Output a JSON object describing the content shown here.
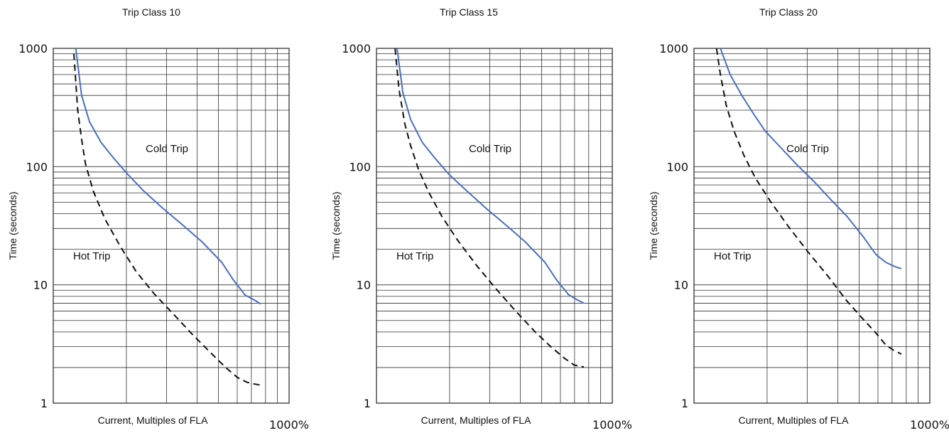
{
  "chart_data": [
    {
      "type": "line",
      "title": "Trip Class 10",
      "xlabel": "Current, Multiples of FLA",
      "ylabel": "Time (seconds)",
      "x_end_label": "1000%",
      "yscale": "log",
      "ylim": [
        1,
        1000
      ],
      "y_ticks": [
        "1",
        "10",
        "100",
        "1000"
      ],
      "grid": true,
      "annotations": [
        "Cold Trip",
        "Hot Trip"
      ],
      "colors": {
        "cold": "#4a6fbf",
        "hot": "#111111"
      },
      "series": [
        {
          "key": "cold",
          "style": "solid",
          "points": [
            [
              0.05,
              1000
            ],
            [
              0.08,
              400
            ],
            [
              0.12,
              240
            ],
            [
              0.18,
              160
            ],
            [
              0.25,
              115
            ],
            [
              0.32,
              85
            ],
            [
              0.4,
              62
            ],
            [
              0.5,
              44
            ],
            [
              0.6,
              32
            ],
            [
              0.7,
              23
            ],
            [
              0.8,
              15.5
            ],
            [
              0.86,
              11
            ],
            [
              0.92,
              8.2
            ],
            [
              0.97,
              7.4
            ],
            [
              1.0,
              6.9
            ]
          ]
        },
        {
          "key": "hot",
          "style": "dashed",
          "points": [
            [
              0.04,
              900
            ],
            [
              0.06,
              300
            ],
            [
              0.08,
              170
            ],
            [
              0.1,
              105
            ],
            [
              0.14,
              62
            ],
            [
              0.2,
              36
            ],
            [
              0.28,
              21
            ],
            [
              0.36,
              13
            ],
            [
              0.45,
              8.5
            ],
            [
              0.55,
              5.7
            ],
            [
              0.65,
              3.8
            ],
            [
              0.75,
              2.6
            ],
            [
              0.82,
              2.0
            ],
            [
              0.88,
              1.65
            ],
            [
              0.93,
              1.5
            ],
            [
              0.97,
              1.45
            ],
            [
              1.0,
              1.42
            ]
          ]
        }
      ]
    },
    {
      "type": "line",
      "title": "Trip Class 15",
      "xlabel": "Current, Multiples of FLA",
      "ylabel": "Time (seconds)",
      "x_end_label": "1000%",
      "yscale": "log",
      "ylim": [
        1,
        1000
      ],
      "y_ticks": [
        "1",
        "10",
        "100",
        "1000"
      ],
      "grid": true,
      "annotations": [
        "Cold Trip",
        "Hot Trip"
      ],
      "colors": {
        "cold": "#4a6fbf",
        "hot": "#111111"
      },
      "series": [
        {
          "key": "cold",
          "style": "solid",
          "points": [
            [
              0.04,
              1000
            ],
            [
              0.07,
              420
            ],
            [
              0.11,
              250
            ],
            [
              0.17,
              160
            ],
            [
              0.24,
              115
            ],
            [
              0.31,
              85
            ],
            [
              0.4,
              62
            ],
            [
              0.5,
              44
            ],
            [
              0.6,
              32
            ],
            [
              0.7,
              23
            ],
            [
              0.8,
              15.5
            ],
            [
              0.86,
              11
            ],
            [
              0.92,
              8.3
            ],
            [
              0.97,
              7.4
            ],
            [
              1.0,
              7.0
            ]
          ]
        },
        {
          "key": "hot",
          "style": "dashed",
          "points": [
            [
              0.03,
              1000
            ],
            [
              0.05,
              450
            ],
            [
              0.08,
              230
            ],
            [
              0.11,
              150
            ],
            [
              0.15,
              95
            ],
            [
              0.2,
              62
            ],
            [
              0.27,
              38
            ],
            [
              0.35,
              24
            ],
            [
              0.45,
              14.5
            ],
            [
              0.55,
              9.2
            ],
            [
              0.65,
              6.0
            ],
            [
              0.75,
              4.0
            ],
            [
              0.83,
              3.0
            ],
            [
              0.9,
              2.4
            ],
            [
              0.95,
              2.1
            ],
            [
              1.0,
              2.02
            ]
          ]
        }
      ]
    },
    {
      "type": "line",
      "title": "Trip Class 20",
      "xlabel": "Current, Multiples of FLA",
      "ylabel": "Time (seconds)",
      "x_end_label": "1000%",
      "yscale": "log",
      "ylim": [
        1,
        1000
      ],
      "y_ticks": [
        "1",
        "10",
        "100",
        "1000"
      ],
      "grid": true,
      "annotations": [
        "Cold Trip",
        "Hot Trip"
      ],
      "colors": {
        "cold": "#4a6fbf",
        "hot": "#111111"
      },
      "series": [
        {
          "key": "cold",
          "style": "solid",
          "points": [
            [
              0.07,
              1000
            ],
            [
              0.12,
              600
            ],
            [
              0.18,
              400
            ],
            [
              0.24,
              280
            ],
            [
              0.3,
              200
            ],
            [
              0.38,
              145
            ],
            [
              0.46,
              105
            ],
            [
              0.55,
              75
            ],
            [
              0.64,
              52
            ],
            [
              0.72,
              38
            ],
            [
              0.8,
              26
            ],
            [
              0.87,
              18
            ],
            [
              0.92,
              15.5
            ],
            [
              0.97,
              14.2
            ],
            [
              1.0,
              13.7
            ]
          ]
        },
        {
          "key": "hot",
          "style": "dashed",
          "points": [
            [
              0.05,
              1000
            ],
            [
              0.07,
              600
            ],
            [
              0.1,
              330
            ],
            [
              0.14,
              200
            ],
            [
              0.19,
              125
            ],
            [
              0.25,
              80
            ],
            [
              0.33,
              50
            ],
            [
              0.42,
              31
            ],
            [
              0.52,
              19
            ],
            [
              0.62,
              12
            ],
            [
              0.72,
              7.3
            ],
            [
              0.8,
              5.2
            ],
            [
              0.87,
              3.9
            ],
            [
              0.92,
              3.1
            ],
            [
              0.96,
              2.8
            ],
            [
              1.0,
              2.6
            ]
          ]
        }
      ]
    }
  ]
}
